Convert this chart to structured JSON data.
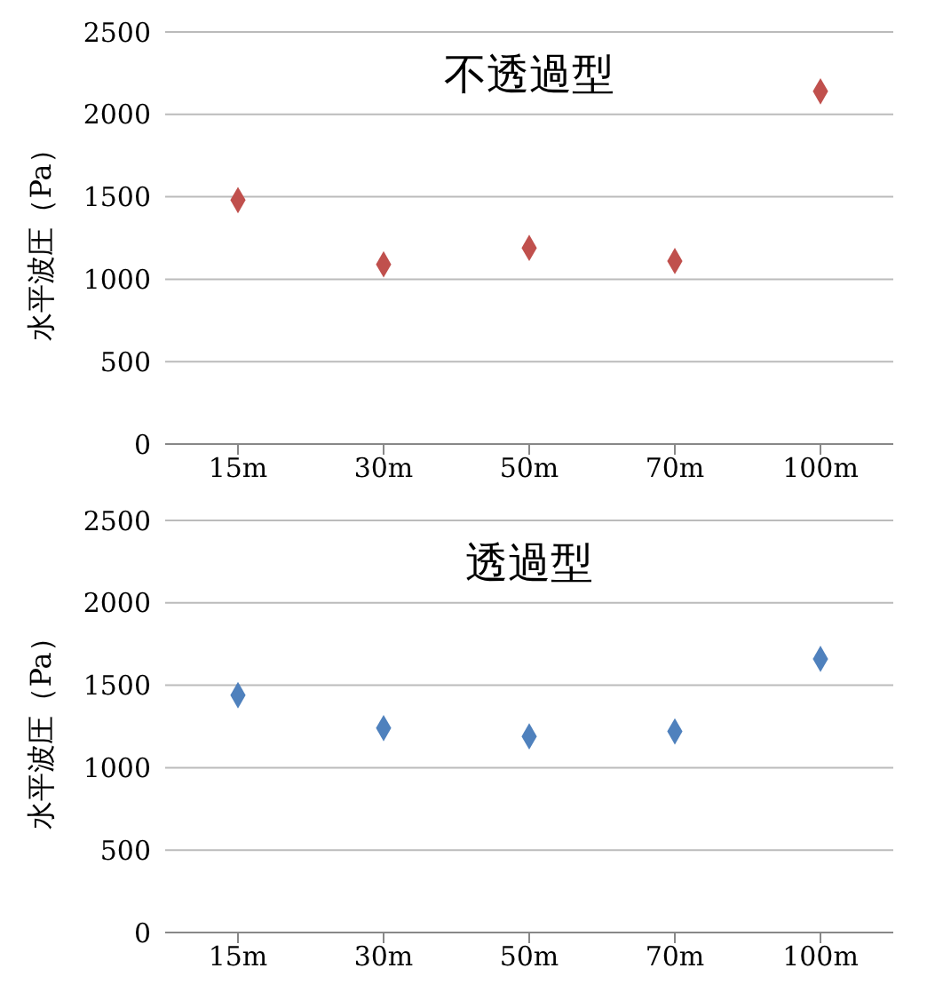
{
  "chart_data": [
    {
      "type": "scatter",
      "title": "不透過型",
      "ylabel": "水平波圧（Pa）",
      "categories": [
        "15m",
        "30m",
        "50m",
        "70m",
        "100m"
      ],
      "series": [
        {
          "color": "#c0504d",
          "values": [
            1480,
            1090,
            1190,
            1110,
            2140
          ]
        }
      ],
      "ylim": [
        0,
        2500
      ],
      "yticks": [
        0,
        500,
        1000,
        1500,
        2000,
        2500
      ],
      "grid": "y",
      "marker": "diamond"
    },
    {
      "type": "scatter",
      "title": "透過型",
      "ylabel": "水平波圧（Pa）",
      "categories": [
        "15m",
        "30m",
        "50m",
        "70m",
        "100m"
      ],
      "series": [
        {
          "color": "#4f81bd",
          "values": [
            1440,
            1240,
            1190,
            1220,
            1660
          ]
        }
      ],
      "ylim": [
        0,
        2500
      ],
      "yticks": [
        0,
        500,
        1000,
        1500,
        2000,
        2500
      ],
      "grid": "y",
      "marker": "diamond"
    }
  ]
}
